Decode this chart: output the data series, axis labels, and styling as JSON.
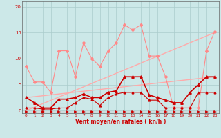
{
  "background_color": "#cce8e8",
  "grid_color": "#aacccc",
  "xlabel": "Vent moyen/en rafales ( kn/h )",
  "tick_color": "#cc0000",
  "yticks": [
    0,
    5,
    10,
    15,
    20
  ],
  "xticks": [
    0,
    1,
    2,
    3,
    4,
    5,
    6,
    7,
    8,
    9,
    10,
    11,
    12,
    13,
    14,
    15,
    16,
    17,
    18,
    19,
    20,
    21,
    22,
    23
  ],
  "xlim": [
    -0.5,
    23.5
  ],
  "ylim": [
    -0.5,
    21
  ],
  "series": [
    {
      "name": "pink_diagonal_high",
      "x": [
        0,
        23
      ],
      "y": [
        0,
        15
      ],
      "color": "#ffaaaa",
      "linewidth": 1.0,
      "linestyle": "-",
      "marker": null,
      "markersize": 0
    },
    {
      "name": "pink_diagonal_low",
      "x": [
        0,
        23
      ],
      "y": [
        2.5,
        6.5
      ],
      "color": "#ffaaaa",
      "linewidth": 1.0,
      "linestyle": "-",
      "marker": null,
      "markersize": 0
    },
    {
      "name": "pink_jagged",
      "x": [
        0,
        1,
        2,
        3,
        4,
        5,
        6,
        7,
        8,
        9,
        10,
        11,
        12,
        13,
        14,
        15,
        16,
        17,
        18,
        19,
        20,
        21,
        22,
        23
      ],
      "y": [
        8.5,
        5.5,
        5.5,
        3.5,
        11.5,
        11.5,
        6.5,
        13.0,
        10.0,
        8.5,
        11.5,
        13.0,
        16.5,
        15.5,
        16.5,
        10.5,
        10.5,
        6.5,
        0.5,
        0.5,
        0.5,
        0.5,
        11.5,
        15.2
      ],
      "color": "#ff8888",
      "linewidth": 0.8,
      "linestyle": "-",
      "marker": "D",
      "markersize": 2.0
    },
    {
      "name": "red_arrows_bottom",
      "x": [
        0,
        1,
        2,
        3,
        4,
        5,
        6,
        7,
        8,
        9,
        10,
        11,
        12,
        13,
        14,
        15,
        16,
        17,
        18,
        19,
        20,
        21,
        22,
        23
      ],
      "y": [
        -0.3,
        -0.3,
        -0.3,
        -0.3,
        -0.3,
        -0.3,
        -0.3,
        -0.3,
        -0.3,
        -0.3,
        -0.3,
        -0.3,
        -0.3,
        -0.3,
        -0.3,
        -0.3,
        -0.3,
        -0.3,
        -0.3,
        -0.3,
        -0.3,
        -0.3,
        -0.3,
        -0.3
      ],
      "color": "#cc0000",
      "linewidth": 0.8,
      "linestyle": "-",
      "marker": ">",
      "markersize": 2.5
    },
    {
      "name": "dark_red_main",
      "x": [
        0,
        1,
        2,
        3,
        4,
        5,
        6,
        7,
        8,
        9,
        10,
        11,
        12,
        13,
        14,
        15,
        16,
        17,
        18,
        19,
        20,
        21,
        22,
        23
      ],
      "y": [
        2.5,
        1.5,
        0.5,
        0.5,
        2.2,
        2.2,
        2.5,
        3.2,
        2.5,
        2.5,
        3.5,
        3.8,
        6.5,
        6.5,
        6.5,
        3.0,
        2.5,
        2.0,
        1.5,
        1.5,
        3.5,
        5.0,
        6.5,
        6.5
      ],
      "color": "#cc0000",
      "linewidth": 1.2,
      "linestyle": "-",
      "marker": "^",
      "markersize": 2.5
    },
    {
      "name": "dark_red_lower",
      "x": [
        0,
        1,
        2,
        3,
        4,
        5,
        6,
        7,
        8,
        9,
        10,
        11,
        12,
        13,
        14,
        15,
        16,
        17,
        18,
        19,
        20,
        21,
        22,
        23
      ],
      "y": [
        0.5,
        0.5,
        0.3,
        0.3,
        0.5,
        0.5,
        1.5,
        2.5,
        2.2,
        1.0,
        2.5,
        3.2,
        3.5,
        3.5,
        3.5,
        2.0,
        2.0,
        0.5,
        0.5,
        0.5,
        0.5,
        3.5,
        3.5,
        3.5
      ],
      "color": "#cc0000",
      "linewidth": 0.8,
      "linestyle": "-",
      "marker": "^",
      "markersize": 2.0
    }
  ]
}
